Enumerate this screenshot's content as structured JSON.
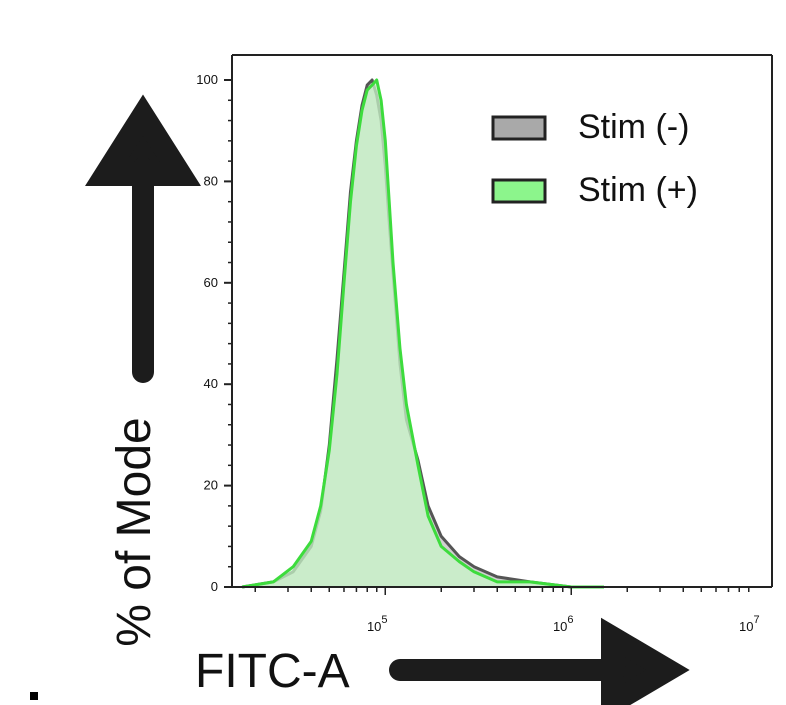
{
  "chart_data": {
    "type": "area",
    "xlabel": "FITC-A",
    "ylabel": "% of Mode",
    "xscale": "log",
    "xlim": [
      15000,
      12000000
    ],
    "ylim": [
      0,
      100
    ],
    "y_ticks": [
      0,
      20,
      40,
      60,
      80,
      100
    ],
    "x_ticks": [
      {
        "value": 100000,
        "base": "10",
        "exp": "5"
      },
      {
        "value": 1000000,
        "base": "10",
        "exp": "6"
      },
      {
        "value": 10000000,
        "base": "10",
        "exp": "7"
      }
    ],
    "legend_position": "top-right",
    "series": [
      {
        "name": "Stim (-)",
        "fill": "#a9a9a9",
        "stroke": "#555555",
        "x": [
          17000,
          25000,
          32000,
          40000,
          45000,
          50000,
          55000,
          60000,
          65000,
          70000,
          75000,
          80000,
          85000,
          90000,
          95000,
          100000,
          105000,
          110000,
          120000,
          130000,
          150000,
          170000,
          200000,
          250000,
          300000,
          400000,
          600000,
          1000000,
          1500000
        ],
        "y": [
          0,
          1,
          3,
          8,
          15,
          28,
          45,
          62,
          78,
          88,
          95,
          99,
          100,
          97,
          92,
          83,
          72,
          62,
          44,
          33,
          25,
          16,
          10,
          6,
          4,
          2,
          1,
          0,
          0
        ]
      },
      {
        "name": "Stim (+)",
        "fill": "#c8f5c8",
        "stroke": "#3ddc3d",
        "x": [
          17000,
          25000,
          32000,
          40000,
          45000,
          50000,
          55000,
          60000,
          65000,
          70000,
          75000,
          80000,
          85000,
          90000,
          95000,
          100000,
          105000,
          110000,
          120000,
          130000,
          150000,
          170000,
          200000,
          250000,
          300000,
          400000,
          600000,
          1000000,
          1500000
        ],
        "y": [
          0,
          1,
          4,
          9,
          16,
          27,
          42,
          60,
          76,
          87,
          94,
          98,
          99,
          100,
          96,
          88,
          76,
          64,
          47,
          36,
          24,
          14,
          8,
          5,
          3,
          1,
          1,
          0,
          0
        ]
      }
    ]
  },
  "legend": {
    "items": [
      {
        "label": "Stim (-)",
        "fill": "#a9a9a9",
        "stroke": "#222222"
      },
      {
        "label": "Stim (+)",
        "fill": "#8cf58c",
        "stroke": "#222222"
      }
    ]
  },
  "colors": {
    "arrow": "#1c1c1c",
    "axis": "#222222"
  }
}
